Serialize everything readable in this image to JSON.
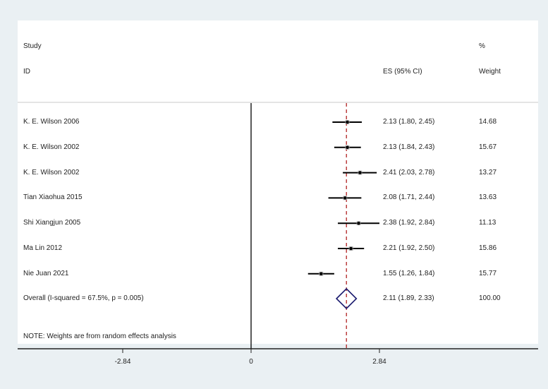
{
  "header": {
    "study_label": "Study",
    "id_label": "ID",
    "es_label": "ES (95% CI)",
    "pct_label": "%",
    "weight_label": "Weight"
  },
  "rows": [
    {
      "study": "K. E. Wilson 2006",
      "es_ci": "2.13 (1.80, 2.45)",
      "weight": "14.68"
    },
    {
      "study": "K. E. Wilson 2002",
      "es_ci": "2.13 (1.84, 2.43)",
      "weight": "15.67"
    },
    {
      "study": "K. E. Wilson 2002",
      "es_ci": "2.41 (2.03, 2.78)",
      "weight": "13.27"
    },
    {
      "study": "Tian Xiaohua 2015",
      "es_ci": "2.08 (1.71, 2.44)",
      "weight": "13.63"
    },
    {
      "study": "Shi Xiangjun 2005",
      "es_ci": "2.38 (1.92, 2.84)",
      "weight": "11.13"
    },
    {
      "study": "Ma Lin 2012",
      "es_ci": "2.21 (1.92, 2.50)",
      "weight": "15.86"
    },
    {
      "study": "Nie Juan 2021",
      "es_ci": "1.55 (1.26, 1.84)",
      "weight": "15.77"
    }
  ],
  "overall": {
    "label": "Overall  (I-squared = 67.5%, p = 0.005)",
    "es_ci": "2.11 (1.89, 2.33)",
    "weight": "100.00"
  },
  "note": "NOTE: Weights are from random effects analysis",
  "axis": {
    "ticks": [
      {
        "value": -2.84,
        "label": "-2.84"
      },
      {
        "value": 0,
        "label": "0"
      },
      {
        "value": 2.84,
        "label": "2.84"
      }
    ]
  },
  "colors": {
    "background": "#eaf0f3",
    "plot": "#ffffff",
    "ci_line": "#000000",
    "weight_box": "#b0b0b0",
    "overall_diamond": "#1a1a6e",
    "overall_line": "#b22222"
  },
  "chart_data": {
    "type": "forest",
    "title": "",
    "xlabel": "",
    "ylabel": "",
    "x_ticks": [
      -2.84,
      0,
      2.84
    ],
    "null_line": 0,
    "overall_line": 2.11,
    "studies": [
      {
        "name": "K. E. Wilson 2006",
        "es": 2.13,
        "lower": 1.8,
        "upper": 2.45,
        "weight": 14.68
      },
      {
        "name": "K. E. Wilson 2002",
        "es": 2.13,
        "lower": 1.84,
        "upper": 2.43,
        "weight": 15.67
      },
      {
        "name": "K. E. Wilson 2002",
        "es": 2.41,
        "lower": 2.03,
        "upper": 2.78,
        "weight": 13.27
      },
      {
        "name": "Tian Xiaohua 2015",
        "es": 2.08,
        "lower": 1.71,
        "upper": 2.44,
        "weight": 13.63
      },
      {
        "name": "Shi Xiangjun 2005",
        "es": 2.38,
        "lower": 1.92,
        "upper": 2.84,
        "weight": 11.13
      },
      {
        "name": "Ma Lin 2012",
        "es": 2.21,
        "lower": 1.92,
        "upper": 2.5,
        "weight": 15.86
      },
      {
        "name": "Nie Juan 2021",
        "es": 1.55,
        "lower": 1.26,
        "upper": 1.84,
        "weight": 15.77
      }
    ],
    "overall": {
      "es": 2.11,
      "lower": 1.89,
      "upper": 2.33,
      "weight": 100.0,
      "i_squared": "67.5%",
      "p": 0.005
    },
    "note": "Weights are from random effects analysis"
  }
}
